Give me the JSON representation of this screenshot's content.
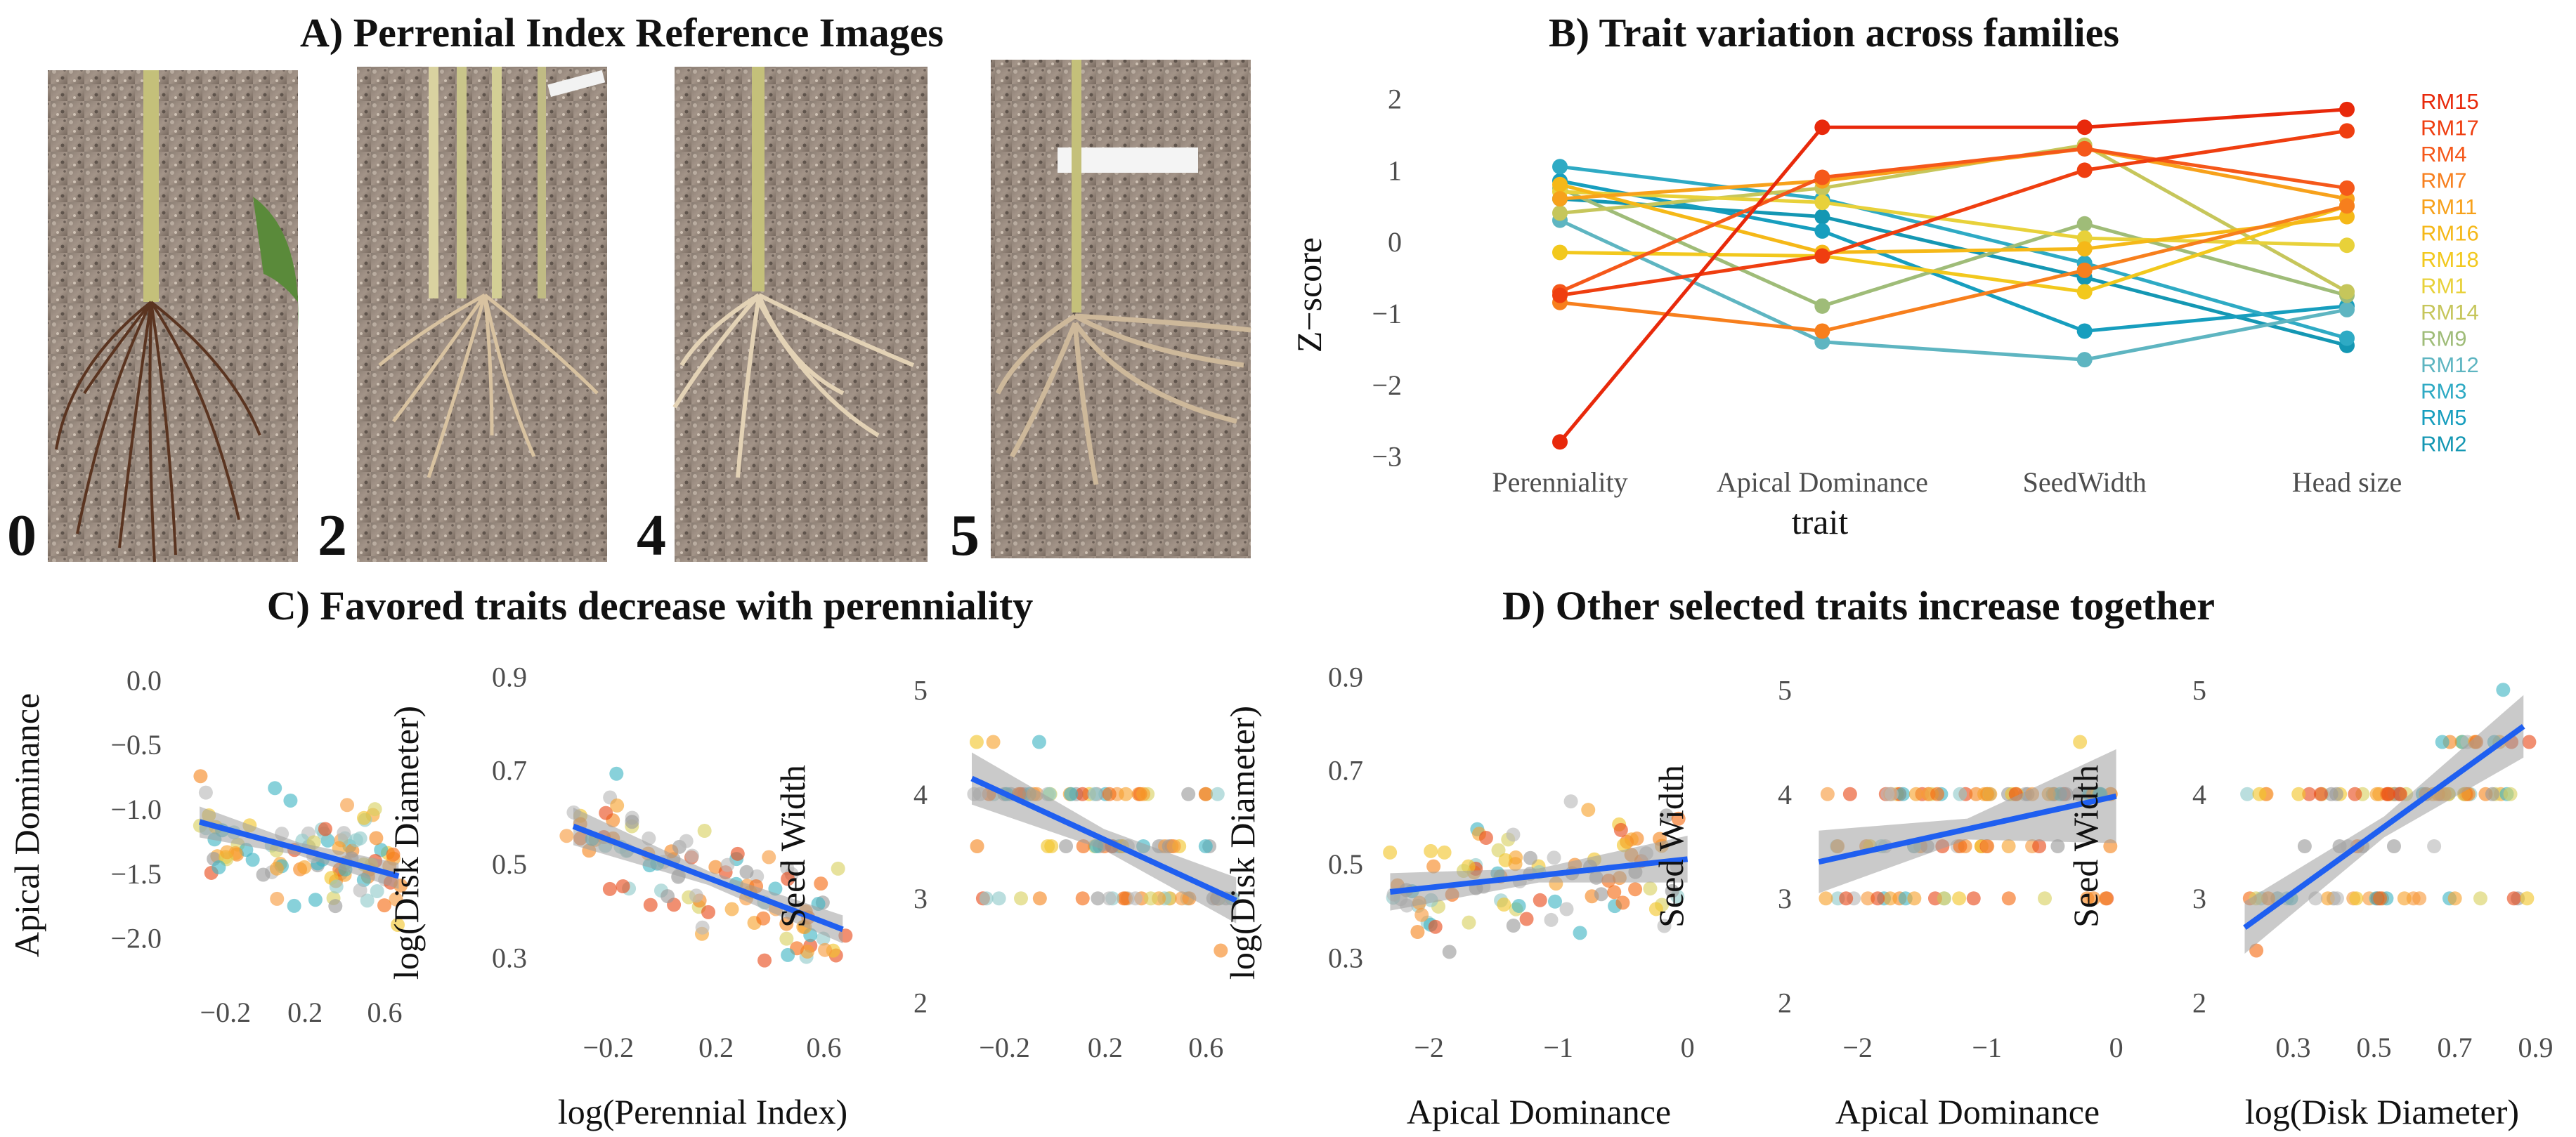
{
  "panel_a": {
    "title": "A) Perrenial Index Reference Images",
    "photos": [
      {
        "label": "0",
        "description_icon": "root-photo-icon"
      },
      {
        "label": "2",
        "description_icon": "root-photo-icon"
      },
      {
        "label": "4",
        "description_icon": "root-photo-icon"
      },
      {
        "label": "5",
        "description_icon": "root-photo-icon"
      }
    ]
  },
  "chart_data": [
    {
      "id": "B",
      "type": "line",
      "title": "B) Trait variation across families",
      "xlabel": "trait",
      "ylabel": "Z−score",
      "categories": [
        "Perenniality",
        "Apical Dominance",
        "SeedWidth",
        "Head size"
      ],
      "ylim": [
        -3.2,
        2.3
      ],
      "yticks": [
        "2",
        "1",
        "0",
        "−1",
        "−2",
        "−3"
      ],
      "ytick_values": [
        2,
        1,
        0,
        -1,
        -2,
        -3
      ],
      "series": [
        {
          "name": "RM15",
          "color": "#e8290b",
          "values": [
            -2.8,
            1.6,
            1.6,
            1.85
          ]
        },
        {
          "name": "RM17",
          "color": "#ef3e10",
          "values": [
            -0.75,
            -0.2,
            1.0,
            1.55
          ]
        },
        {
          "name": "RM4",
          "color": "#f5581a",
          "values": [
            -0.7,
            0.9,
            1.3,
            0.75
          ]
        },
        {
          "name": "RM7",
          "color": "#f77f1d",
          "values": [
            -0.85,
            -1.25,
            -0.4,
            0.5
          ]
        },
        {
          "name": "RM11",
          "color": "#f7a11b",
          "values": [
            0.6,
            0.85,
            1.3,
            0.6
          ]
        },
        {
          "name": "RM16",
          "color": "#f5b818",
          "values": [
            0.8,
            -0.15,
            -0.1,
            0.35
          ]
        },
        {
          "name": "RM18",
          "color": "#f2c81d",
          "values": [
            -0.15,
            -0.2,
            -0.7,
            0.5
          ]
        },
        {
          "name": "RM1",
          "color": "#e8d13a",
          "values": [
            0.7,
            0.55,
            0.05,
            -0.05
          ]
        },
        {
          "name": "RM14",
          "color": "#c6c65b",
          "values": [
            0.4,
            0.75,
            1.35,
            -0.7
          ]
        },
        {
          "name": "RM9",
          "color": "#9fbc78",
          "values": [
            0.75,
            -0.9,
            0.25,
            -0.75
          ]
        },
        {
          "name": "RM12",
          "color": "#5eb5c1",
          "values": [
            0.3,
            -1.4,
            -1.65,
            -0.95
          ]
        },
        {
          "name": "RM3",
          "color": "#2eaac4",
          "values": [
            1.05,
            0.6,
            -0.3,
            -1.35
          ]
        },
        {
          "name": "RM5",
          "color": "#179ebe",
          "values": [
            0.85,
            0.15,
            -1.25,
            -0.9
          ]
        },
        {
          "name": "RM2",
          "color": "#1497b3",
          "values": [
            0.6,
            0.35,
            -0.5,
            -1.45
          ]
        }
      ]
    },
    {
      "id": "C1",
      "type": "scatter",
      "group_title": "C) Favored traits decrease with perenniality",
      "xlabel": "",
      "ylabel": "Apical Dominance",
      "xlim": [
        -0.45,
        0.75
      ],
      "ylim": [
        -2.35,
        0.1
      ],
      "xticks": [
        "−0.2",
        "0.2",
        "0.6"
      ],
      "xtick_values": [
        -0.2,
        0.2,
        0.6
      ],
      "yticks": [
        "0.0",
        "−0.5",
        "−1.0",
        "−1.5",
        "−2.0"
      ],
      "ytick_values": [
        0.0,
        -0.5,
        -1.0,
        -1.5,
        -2.0
      ],
      "trend": {
        "x": [
          -0.33,
          0.67
        ],
        "y": [
          -1.1,
          -1.52
        ],
        "band": [
          0.12,
          0.05,
          0.1
        ]
      }
    },
    {
      "id": "C2",
      "type": "scatter",
      "xlabel": "log(Perennial Index)",
      "ylabel": "log(Disk Diameter)",
      "xlim": [
        -0.45,
        0.75
      ],
      "ylim": [
        0.17,
        0.92
      ],
      "xticks": [
        "−0.2",
        "0.2",
        "0.6"
      ],
      "xtick_values": [
        -0.2,
        0.2,
        0.6
      ],
      "yticks": [
        "0.9",
        "0.7",
        "0.5",
        "0.3"
      ],
      "ytick_values": [
        0.9,
        0.7,
        0.5,
        0.3
      ],
      "trend": {
        "x": [
          -0.33,
          0.67
        ],
        "y": [
          0.58,
          0.36
        ],
        "band": [
          0.04,
          0.015,
          0.03
        ]
      }
    },
    {
      "id": "C3",
      "type": "scatter",
      "xlabel": "",
      "ylabel": "Seed Width",
      "xlim": [
        -0.45,
        0.75
      ],
      "ylim": [
        1.85,
        5.15
      ],
      "xticks": [
        "−0.2",
        "0.2",
        "0.6"
      ],
      "xtick_values": [
        -0.2,
        0.2,
        0.6
      ],
      "yticks": [
        "5",
        "4",
        "3",
        "2"
      ],
      "ytick_values": [
        5,
        4,
        3,
        2
      ],
      "trend": {
        "x": [
          -0.33,
          0.72
        ],
        "y": [
          4.15,
          2.98
        ],
        "band": [
          0.25,
          0.1,
          0.22
        ]
      }
    },
    {
      "id": "D1",
      "type": "scatter",
      "group_title": "D) Other selected traits increase together",
      "xlabel": "Apical Dominance",
      "ylabel": "log(Disk Diameter)",
      "xlim": [
        -2.4,
        0.1
      ],
      "ylim": [
        0.17,
        0.92
      ],
      "xticks": [
        "−2",
        "−1",
        "0"
      ],
      "xtick_values": [
        -2,
        -1,
        0
      ],
      "yticks": [
        "0.9",
        "0.7",
        "0.5",
        "0.3"
      ],
      "ytick_values": [
        0.9,
        0.7,
        0.5,
        0.3
      ],
      "trend": {
        "x": [
          -2.3,
          0.0
        ],
        "y": [
          0.44,
          0.51
        ],
        "band": [
          0.04,
          0.015,
          0.05
        ]
      }
    },
    {
      "id": "D2",
      "type": "scatter",
      "xlabel": "Apical Dominance",
      "ylabel": "Seed Width",
      "xlim": [
        -2.4,
        0.1
      ],
      "ylim": [
        1.85,
        5.15
      ],
      "xticks": [
        "−2",
        "−1",
        "0"
      ],
      "xtick_values": [
        -2,
        -1,
        0
      ],
      "yticks": [
        "5",
        "4",
        "3",
        "2"
      ],
      "ytick_values": [
        5,
        4,
        3,
        2
      ],
      "trend": {
        "x": [
          -2.3,
          0.0
        ],
        "y": [
          3.35,
          3.98
        ],
        "band": [
          0.3,
          0.1,
          0.45
        ]
      }
    },
    {
      "id": "D3",
      "type": "scatter",
      "xlabel": "log(Disk Diameter)",
      "ylabel": "Seed Width",
      "xlim": [
        0.12,
        0.92
      ],
      "ylim": [
        1.85,
        5.15
      ],
      "xticks": [
        "0.3",
        "0.5",
        "0.7",
        "0.9"
      ],
      "xtick_values": [
        0.3,
        0.5,
        0.7,
        0.9
      ],
      "yticks": [
        "5",
        "4",
        "3",
        "2"
      ],
      "ytick_values": [
        5,
        4,
        3,
        2
      ],
      "trend": {
        "x": [
          0.18,
          0.87
        ],
        "y": [
          2.72,
          4.65
        ],
        "band": [
          0.25,
          0.1,
          0.3
        ]
      }
    }
  ]
}
